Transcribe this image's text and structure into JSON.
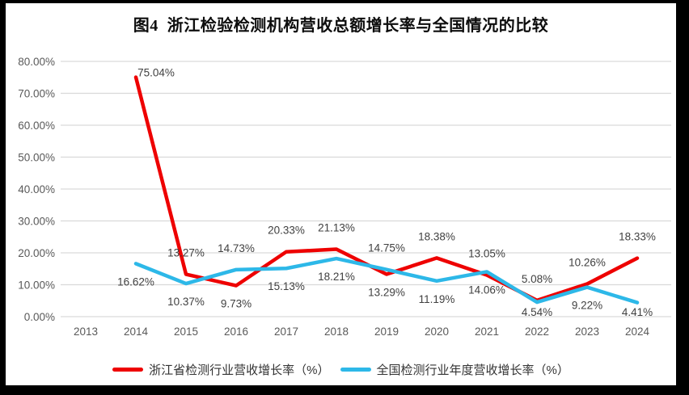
{
  "title": "图4  浙江检验检测机构营收总额增长率与全国情况的比较",
  "colors": {
    "frame": "#000000",
    "background": "#ffffff",
    "gridline": "#d9d9d9",
    "axis_text": "#595959",
    "data_label_text": "#404040",
    "zhejiang_line": "#ee0000",
    "national_line": "#2db8e8"
  },
  "chart_data": {
    "type": "line",
    "title": "图4  浙江检验检测机构营收总额增长率与全国情况的比较",
    "categories": [
      "2013",
      "2014",
      "2015",
      "2016",
      "2017",
      "2018",
      "2019",
      "2020",
      "2021",
      "2022",
      "2023",
      "2024"
    ],
    "series": [
      {
        "name": "浙江省检测行业营收增长率（%）",
        "color": "#ee0000",
        "values": [
          null,
          75.04,
          13.27,
          9.73,
          20.33,
          21.13,
          13.29,
          18.38,
          13.05,
          5.08,
          10.26,
          18.33
        ],
        "label_positions": [
          null,
          "right",
          "above",
          "below",
          "above",
          "above",
          "below",
          "above",
          "above",
          "above",
          "above",
          "above"
        ]
      },
      {
        "name": "全国检测行业年度营收增长率（%）",
        "color": "#2db8e8",
        "values": [
          null,
          16.62,
          10.37,
          14.73,
          15.13,
          18.21,
          14.75,
          11.19,
          14.06,
          4.54,
          9.22,
          4.41
        ],
        "label_positions": [
          null,
          "below",
          "below",
          "above",
          "below",
          "below",
          "above",
          "below",
          "below",
          "below",
          "below",
          "below"
        ]
      }
    ],
    "ylim": [
      0,
      80
    ],
    "ytick_step": 10,
    "ytick_labels": [
      "0.00%",
      "10.00%",
      "20.00%",
      "30.00%",
      "40.00%",
      "50.00%",
      "60.00%",
      "70.00%",
      "80.00%"
    ],
    "value_suffix": "%",
    "grid": "horizontal-only",
    "legend_position": "bottom-center",
    "data_labels": "on"
  }
}
